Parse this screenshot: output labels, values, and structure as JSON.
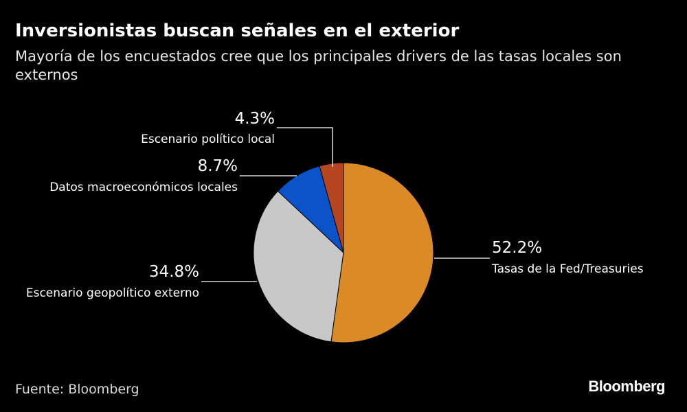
{
  "header": {
    "title": "Inversionistas buscan señales en el exterior",
    "subtitle": "Mayoría de los encuestados cree que los principales drivers de las tasas locales son externos"
  },
  "footer": {
    "source": "Fuente: Bloomberg",
    "logo": "Bloomberg"
  },
  "chart_data": {
    "type": "pie",
    "title": "",
    "unit": "%",
    "slices": [
      {
        "label": "Tasas de la Fed/Treasuries",
        "value": 52.2,
        "display": "52.2%",
        "color": "#db8a28"
      },
      {
        "label": "Escenario geopolítico externo",
        "value": 34.8,
        "display": "34.8%",
        "color": "#c8c8c8"
      },
      {
        "label": "Datos macroeconómicos locales",
        "value": 8.7,
        "display": "8.7%",
        "color": "#0c52c8"
      },
      {
        "label": "Escenario político local",
        "value": 4.3,
        "display": "4.3%",
        "color": "#b5461f"
      }
    ]
  }
}
